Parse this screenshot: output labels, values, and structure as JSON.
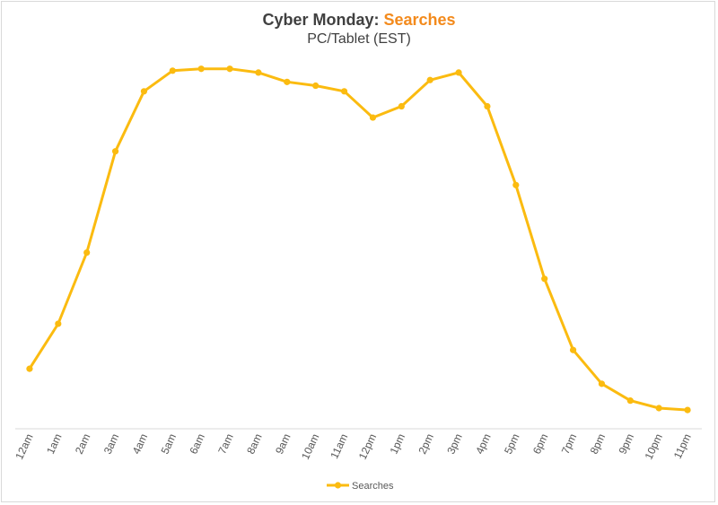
{
  "chart_data": {
    "type": "line",
    "title_main": "Cyber Monday",
    "title_sep": ": ",
    "title_accent": "Searches",
    "subtitle": "PC/Tablet (EST)",
    "categories": [
      "12am",
      "1am",
      "2am",
      "3am",
      "4am",
      "5am",
      "6am",
      "7am",
      "8am",
      "9am",
      "10am",
      "11am",
      "12pm",
      "1pm",
      "2pm",
      "3pm",
      "4pm",
      "5pm",
      "6pm",
      "7pm",
      "8pm",
      "9pm",
      "10pm",
      "11pm"
    ],
    "series": [
      {
        "name": "Searches",
        "color": "#fbbb10",
        "values": [
          16,
          28,
          47,
          74,
          90,
          95.5,
          96,
          96,
          95,
          92.5,
          91.5,
          90,
          83,
          86,
          93,
          95,
          86,
          65,
          40,
          21,
          12,
          7.5,
          5.5,
          5
        ]
      }
    ],
    "ylim": [
      0,
      100
    ],
    "grid": false,
    "legend": "bottom"
  }
}
